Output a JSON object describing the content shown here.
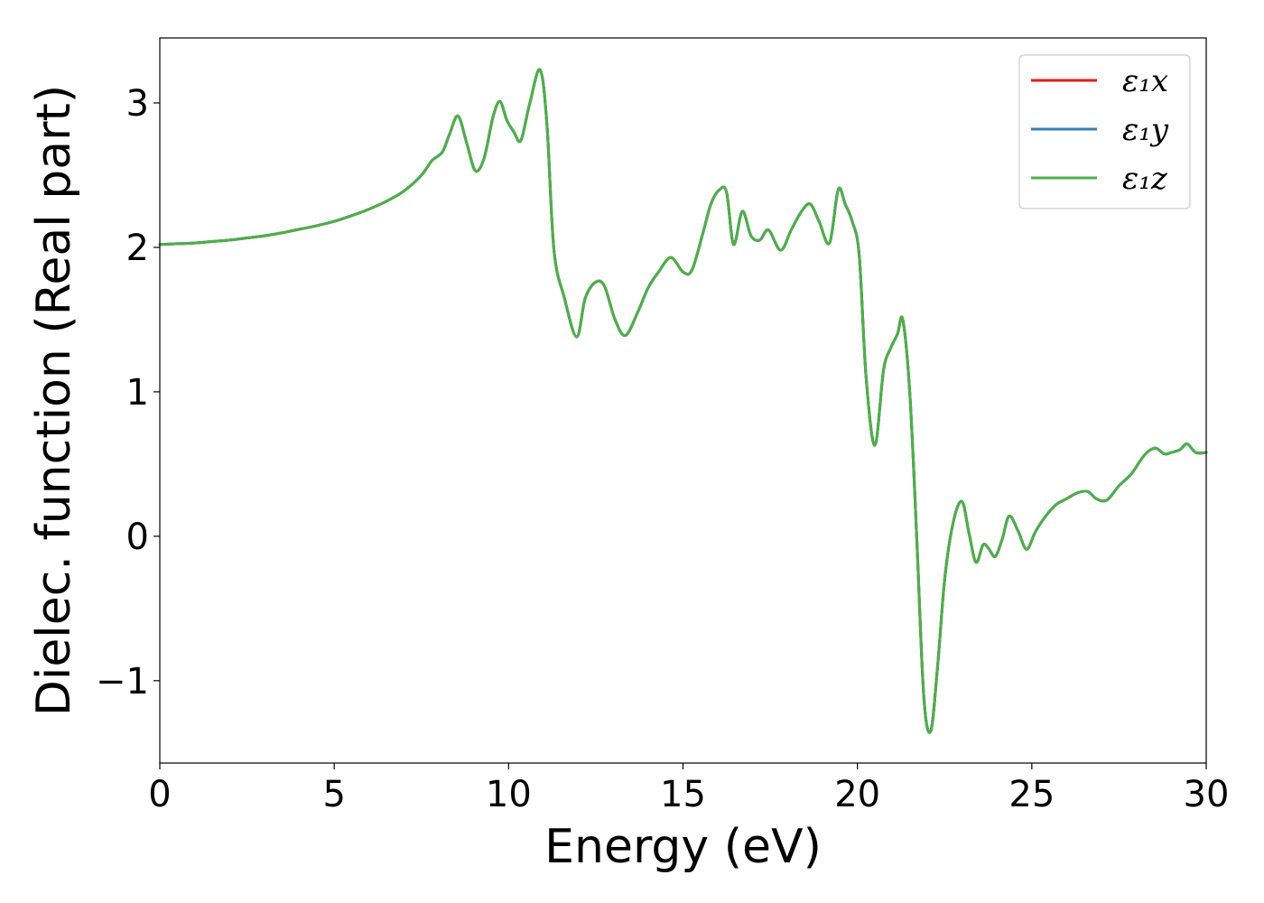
{
  "chart_data": {
    "type": "line",
    "xlabel": "Energy (eV)",
    "ylabel": "Dielec. function (Real part)",
    "xlim": [
      0,
      30
    ],
    "ylim": [
      -1.57,
      3.45
    ],
    "xticks": [
      0,
      5,
      10,
      15,
      20,
      25,
      30
    ],
    "xtick_labels": [
      "0",
      "5",
      "10",
      "15",
      "20",
      "25",
      "30"
    ],
    "yticks": [
      -1,
      0,
      1,
      2,
      3
    ],
    "ytick_labels": [
      "−1",
      "0",
      "1",
      "2",
      "3"
    ],
    "grid": false,
    "legend_position": "top-right",
    "x": [
      0,
      0.5,
      1,
      1.5,
      2,
      2.5,
      3,
      3.5,
      4,
      4.5,
      5,
      5.5,
      6,
      6.5,
      7,
      7.5,
      7.8,
      8.1,
      8.3,
      8.55,
      8.8,
      9.05,
      9.3,
      9.55,
      9.75,
      9.95,
      10.15,
      10.35,
      10.6,
      10.9,
      11.1,
      11.3,
      11.6,
      11.95,
      12.2,
      12.5,
      12.75,
      13.05,
      13.35,
      13.7,
      14.0,
      14.3,
      14.65,
      15.0,
      15.25,
      15.55,
      15.8,
      16.05,
      16.25,
      16.45,
      16.7,
      16.95,
      17.2,
      17.45,
      17.8,
      18.1,
      18.4,
      18.65,
      18.9,
      19.2,
      19.45,
      19.65,
      19.85,
      20.05,
      20.25,
      20.5,
      20.75,
      20.95,
      21.15,
      21.3,
      21.5,
      21.7,
      21.9,
      22.1,
      22.3,
      22.5,
      22.75,
      23.0,
      23.2,
      23.4,
      23.6,
      23.75,
      23.95,
      24.15,
      24.35,
      24.6,
      24.85,
      25.1,
      25.4,
      25.7,
      26.0,
      26.3,
      26.6,
      26.85,
      27.15,
      27.5,
      27.85,
      28.1,
      28.3,
      28.55,
      28.8,
      29.0,
      29.25,
      29.45,
      29.7,
      30.0
    ],
    "series": [
      {
        "name": "ε₁x",
        "color": "#e41a1c",
        "y": [
          2.02,
          2.025,
          2.03,
          2.04,
          2.05,
          2.065,
          2.08,
          2.1,
          2.125,
          2.15,
          2.18,
          2.22,
          2.265,
          2.32,
          2.39,
          2.5,
          2.6,
          2.66,
          2.78,
          2.91,
          2.72,
          2.53,
          2.62,
          2.9,
          3.01,
          2.88,
          2.8,
          2.74,
          2.99,
          3.23,
          2.85,
          1.98,
          1.65,
          1.38,
          1.65,
          1.76,
          1.73,
          1.5,
          1.39,
          1.55,
          1.72,
          1.83,
          1.93,
          1.83,
          1.84,
          2.08,
          2.3,
          2.4,
          2.38,
          2.02,
          2.25,
          2.08,
          2.05,
          2.12,
          1.98,
          2.12,
          2.25,
          2.3,
          2.18,
          2.03,
          2.4,
          2.3,
          2.18,
          1.95,
          1.1,
          0.63,
          1.15,
          1.3,
          1.4,
          1.5,
          1.0,
          0.0,
          -1.1,
          -1.35,
          -0.9,
          -0.3,
          0.1,
          0.24,
          0.02,
          -0.18,
          -0.06,
          -0.08,
          -0.14,
          -0.02,
          0.14,
          0.04,
          -0.09,
          0.03,
          0.14,
          0.22,
          0.26,
          0.3,
          0.31,
          0.26,
          0.25,
          0.35,
          0.43,
          0.52,
          0.58,
          0.61,
          0.57,
          0.58,
          0.6,
          0.64,
          0.58,
          0.58
        ]
      },
      {
        "name": "ε₁y",
        "color": "#377eb8",
        "y": [
          2.02,
          2.025,
          2.03,
          2.04,
          2.05,
          2.065,
          2.08,
          2.1,
          2.125,
          2.15,
          2.18,
          2.22,
          2.265,
          2.32,
          2.39,
          2.5,
          2.6,
          2.66,
          2.78,
          2.91,
          2.72,
          2.53,
          2.62,
          2.9,
          3.01,
          2.88,
          2.8,
          2.74,
          2.99,
          3.23,
          2.85,
          1.98,
          1.65,
          1.38,
          1.65,
          1.76,
          1.73,
          1.5,
          1.39,
          1.55,
          1.72,
          1.83,
          1.93,
          1.83,
          1.84,
          2.08,
          2.3,
          2.4,
          2.38,
          2.02,
          2.25,
          2.08,
          2.05,
          2.12,
          1.98,
          2.12,
          2.25,
          2.3,
          2.18,
          2.03,
          2.4,
          2.3,
          2.18,
          1.95,
          1.1,
          0.63,
          1.15,
          1.3,
          1.4,
          1.5,
          1.0,
          0.0,
          -1.1,
          -1.35,
          -0.9,
          -0.3,
          0.1,
          0.24,
          0.02,
          -0.18,
          -0.06,
          -0.08,
          -0.14,
          -0.02,
          0.14,
          0.04,
          -0.09,
          0.03,
          0.14,
          0.22,
          0.26,
          0.3,
          0.31,
          0.26,
          0.25,
          0.35,
          0.43,
          0.52,
          0.58,
          0.61,
          0.57,
          0.58,
          0.6,
          0.64,
          0.58,
          0.58
        ]
      },
      {
        "name": "ε₁z",
        "color": "#4daf4a",
        "y": [
          2.02,
          2.025,
          2.03,
          2.04,
          2.05,
          2.065,
          2.08,
          2.1,
          2.125,
          2.15,
          2.18,
          2.22,
          2.265,
          2.32,
          2.39,
          2.5,
          2.6,
          2.66,
          2.78,
          2.91,
          2.72,
          2.53,
          2.62,
          2.9,
          3.01,
          2.88,
          2.8,
          2.74,
          2.99,
          3.23,
          2.85,
          1.98,
          1.65,
          1.38,
          1.65,
          1.76,
          1.73,
          1.5,
          1.39,
          1.55,
          1.72,
          1.83,
          1.93,
          1.83,
          1.84,
          2.08,
          2.3,
          2.4,
          2.38,
          2.02,
          2.25,
          2.08,
          2.05,
          2.12,
          1.98,
          2.12,
          2.25,
          2.3,
          2.18,
          2.03,
          2.4,
          2.3,
          2.18,
          1.95,
          1.1,
          0.63,
          1.15,
          1.3,
          1.4,
          1.5,
          1.0,
          0.0,
          -1.1,
          -1.35,
          -0.9,
          -0.3,
          0.1,
          0.24,
          0.02,
          -0.18,
          -0.06,
          -0.08,
          -0.14,
          -0.02,
          0.14,
          0.04,
          -0.09,
          0.03,
          0.14,
          0.22,
          0.26,
          0.3,
          0.31,
          0.26,
          0.25,
          0.35,
          0.43,
          0.52,
          0.58,
          0.61,
          0.57,
          0.58,
          0.6,
          0.64,
          0.58,
          0.58
        ]
      }
    ]
  }
}
